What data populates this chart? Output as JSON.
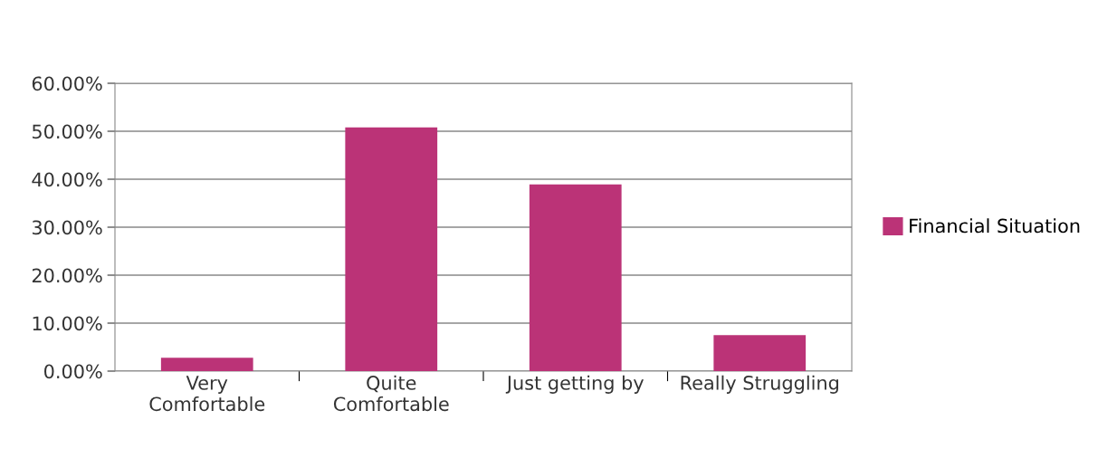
{
  "chart_data": {
    "type": "bar",
    "categories": [
      "Very\nComfortable",
      "Quite\nComfortable",
      "Just getting by",
      "Really Struggling"
    ],
    "series": [
      {
        "name": "Financial Situation",
        "color": "#bb3377",
        "values": [
          2.8,
          50.8,
          38.9,
          7.5
        ]
      }
    ],
    "ylim": [
      0,
      60
    ],
    "yticks": [
      {
        "value": 0,
        "label": "0.00%"
      },
      {
        "value": 10,
        "label": "10.00%"
      },
      {
        "value": 20,
        "label": "20.00%"
      },
      {
        "value": 30,
        "label": "30.00%"
      },
      {
        "value": 40,
        "label": "40.00%"
      },
      {
        "value": 50,
        "label": "50.00%"
      },
      {
        "value": 60,
        "label": "60.00%"
      }
    ],
    "grid": "y",
    "legend": "right"
  }
}
